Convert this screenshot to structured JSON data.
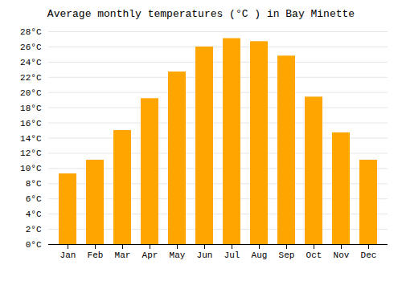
{
  "chart_data": {
    "type": "bar",
    "title": "Average monthly temperatures (°C ) in Bay Minette",
    "categories": [
      "Jan",
      "Feb",
      "Mar",
      "Apr",
      "May",
      "Jun",
      "Jul",
      "Aug",
      "Sep",
      "Oct",
      "Nov",
      "Dec"
    ],
    "values": [
      9.3,
      11.1,
      15.0,
      19.2,
      22.7,
      26.0,
      27.1,
      26.7,
      24.8,
      19.4,
      14.7,
      11.1
    ],
    "color": "#FFA500",
    "ylim": [
      0,
      28
    ],
    "yticks": [
      {
        "value": 0,
        "label": "0°C"
      },
      {
        "value": 2,
        "label": "2°C"
      },
      {
        "value": 4,
        "label": "4°C"
      },
      {
        "value": 6,
        "label": "6°C"
      },
      {
        "value": 8,
        "label": "8°C"
      },
      {
        "value": 10,
        "label": "10°C"
      },
      {
        "value": 12,
        "label": "12°C"
      },
      {
        "value": 14,
        "label": "14°C"
      },
      {
        "value": 16,
        "label": "16°C"
      },
      {
        "value": 18,
        "label": "18°C"
      },
      {
        "value": 20,
        "label": "20°C"
      },
      {
        "value": 22,
        "label": "22°C"
      },
      {
        "value": 24,
        "label": "24°C"
      },
      {
        "value": 26,
        "label": "26°C"
      },
      {
        "value": 28,
        "label": "28°C"
      }
    ],
    "grid": true
  }
}
